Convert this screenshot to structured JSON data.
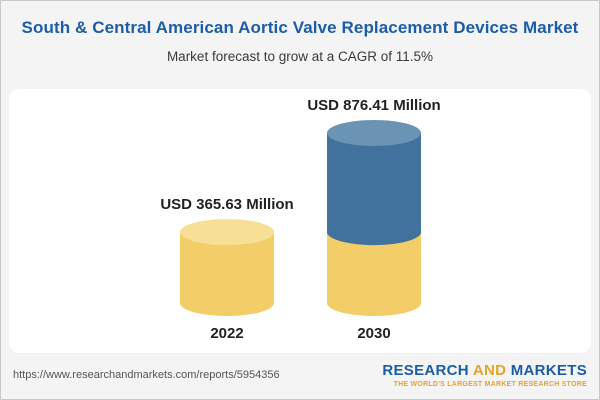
{
  "header": {
    "title": "South & Central American Aortic Valve Replacement Devices Market",
    "subtitle": "Market forecast to grow at a CAGR of 11.5%"
  },
  "chart_data": {
    "type": "bar",
    "variant": "stacked-3d-cylinder",
    "title": "South & Central American Aortic Valve Replacement Devices Market",
    "subtitle": "Market forecast to grow at a CAGR of 11.5%",
    "unit": "USD Million",
    "cagr": "11.5%",
    "categories": [
      "2022",
      "2030"
    ],
    "values": [
      365.63,
      876.41
    ],
    "ylim": [
      0,
      876.41
    ],
    "grid": false,
    "legend": false,
    "bars": [
      {
        "category": "2022",
        "label": "USD 365.63 Million",
        "total": 365.63,
        "segments": [
          {
            "colorKey": "gold",
            "value": 365.63
          }
        ]
      },
      {
        "category": "2030",
        "label": "USD 876.41 Million",
        "total": 876.41,
        "segments": [
          {
            "colorKey": "gold",
            "value": 365.63
          },
          {
            "colorKey": "blue",
            "value": 510.78
          }
        ]
      }
    ]
  },
  "colors": {
    "gold": "#F2CD68",
    "goldTop": "#F7E096",
    "blue": "#41729D",
    "blueTop": "#6A93B4",
    "title": "#1C5CA8",
    "accentGold": "#E2A42B",
    "labelText": "#222222"
  },
  "footer": {
    "url": "https://www.researchandmarkets.com/reports/5954356",
    "logo": {
      "part1": "RESEARCH",
      "part2": "AND",
      "part3": "MARKETS",
      "tagline": "THE WORLD'S LARGEST MARKET RESEARCH STORE"
    }
  }
}
